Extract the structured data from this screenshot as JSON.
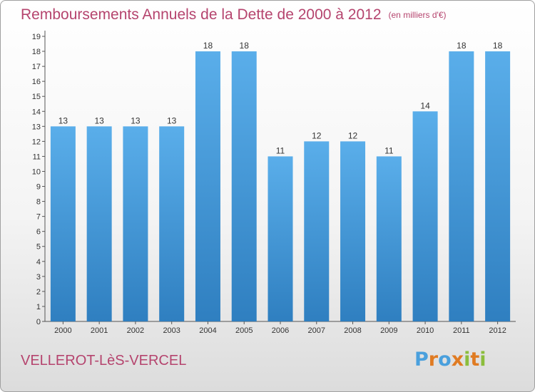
{
  "title": "Remboursements Annuels de la Dette de 2000 à 2012",
  "subtitle": "(en milliers d'€)",
  "commune": "VELLEROT-LèS-VERCEL",
  "logo": {
    "letters": [
      "P",
      "r",
      "o",
      "x",
      "i",
      "t",
      "i"
    ],
    "colors": [
      "#4aa0dd",
      "#e07b22",
      "#4aa0dd",
      "#e07b22",
      "#8bbd3c",
      "#e07b22",
      "#8bbd3c"
    ]
  },
  "colors": {
    "bar_top": "#5aaeea",
    "bar_bottom": "#2f7fc0",
    "title": "#b5446e"
  },
  "chart_data": {
    "type": "bar",
    "categories": [
      "2000",
      "2001",
      "2002",
      "2003",
      "2004",
      "2005",
      "2006",
      "2007",
      "2008",
      "2009",
      "2010",
      "2011",
      "2012"
    ],
    "values": [
      13,
      13,
      13,
      13,
      18,
      18,
      11,
      12,
      12,
      11,
      14,
      18,
      18
    ],
    "ylim": [
      0,
      19
    ],
    "yticks": [
      0,
      1,
      2,
      3,
      4,
      5,
      6,
      7,
      8,
      9,
      10,
      11,
      12,
      13,
      14,
      15,
      16,
      17,
      18,
      19
    ],
    "grid": false,
    "legend": "none"
  }
}
